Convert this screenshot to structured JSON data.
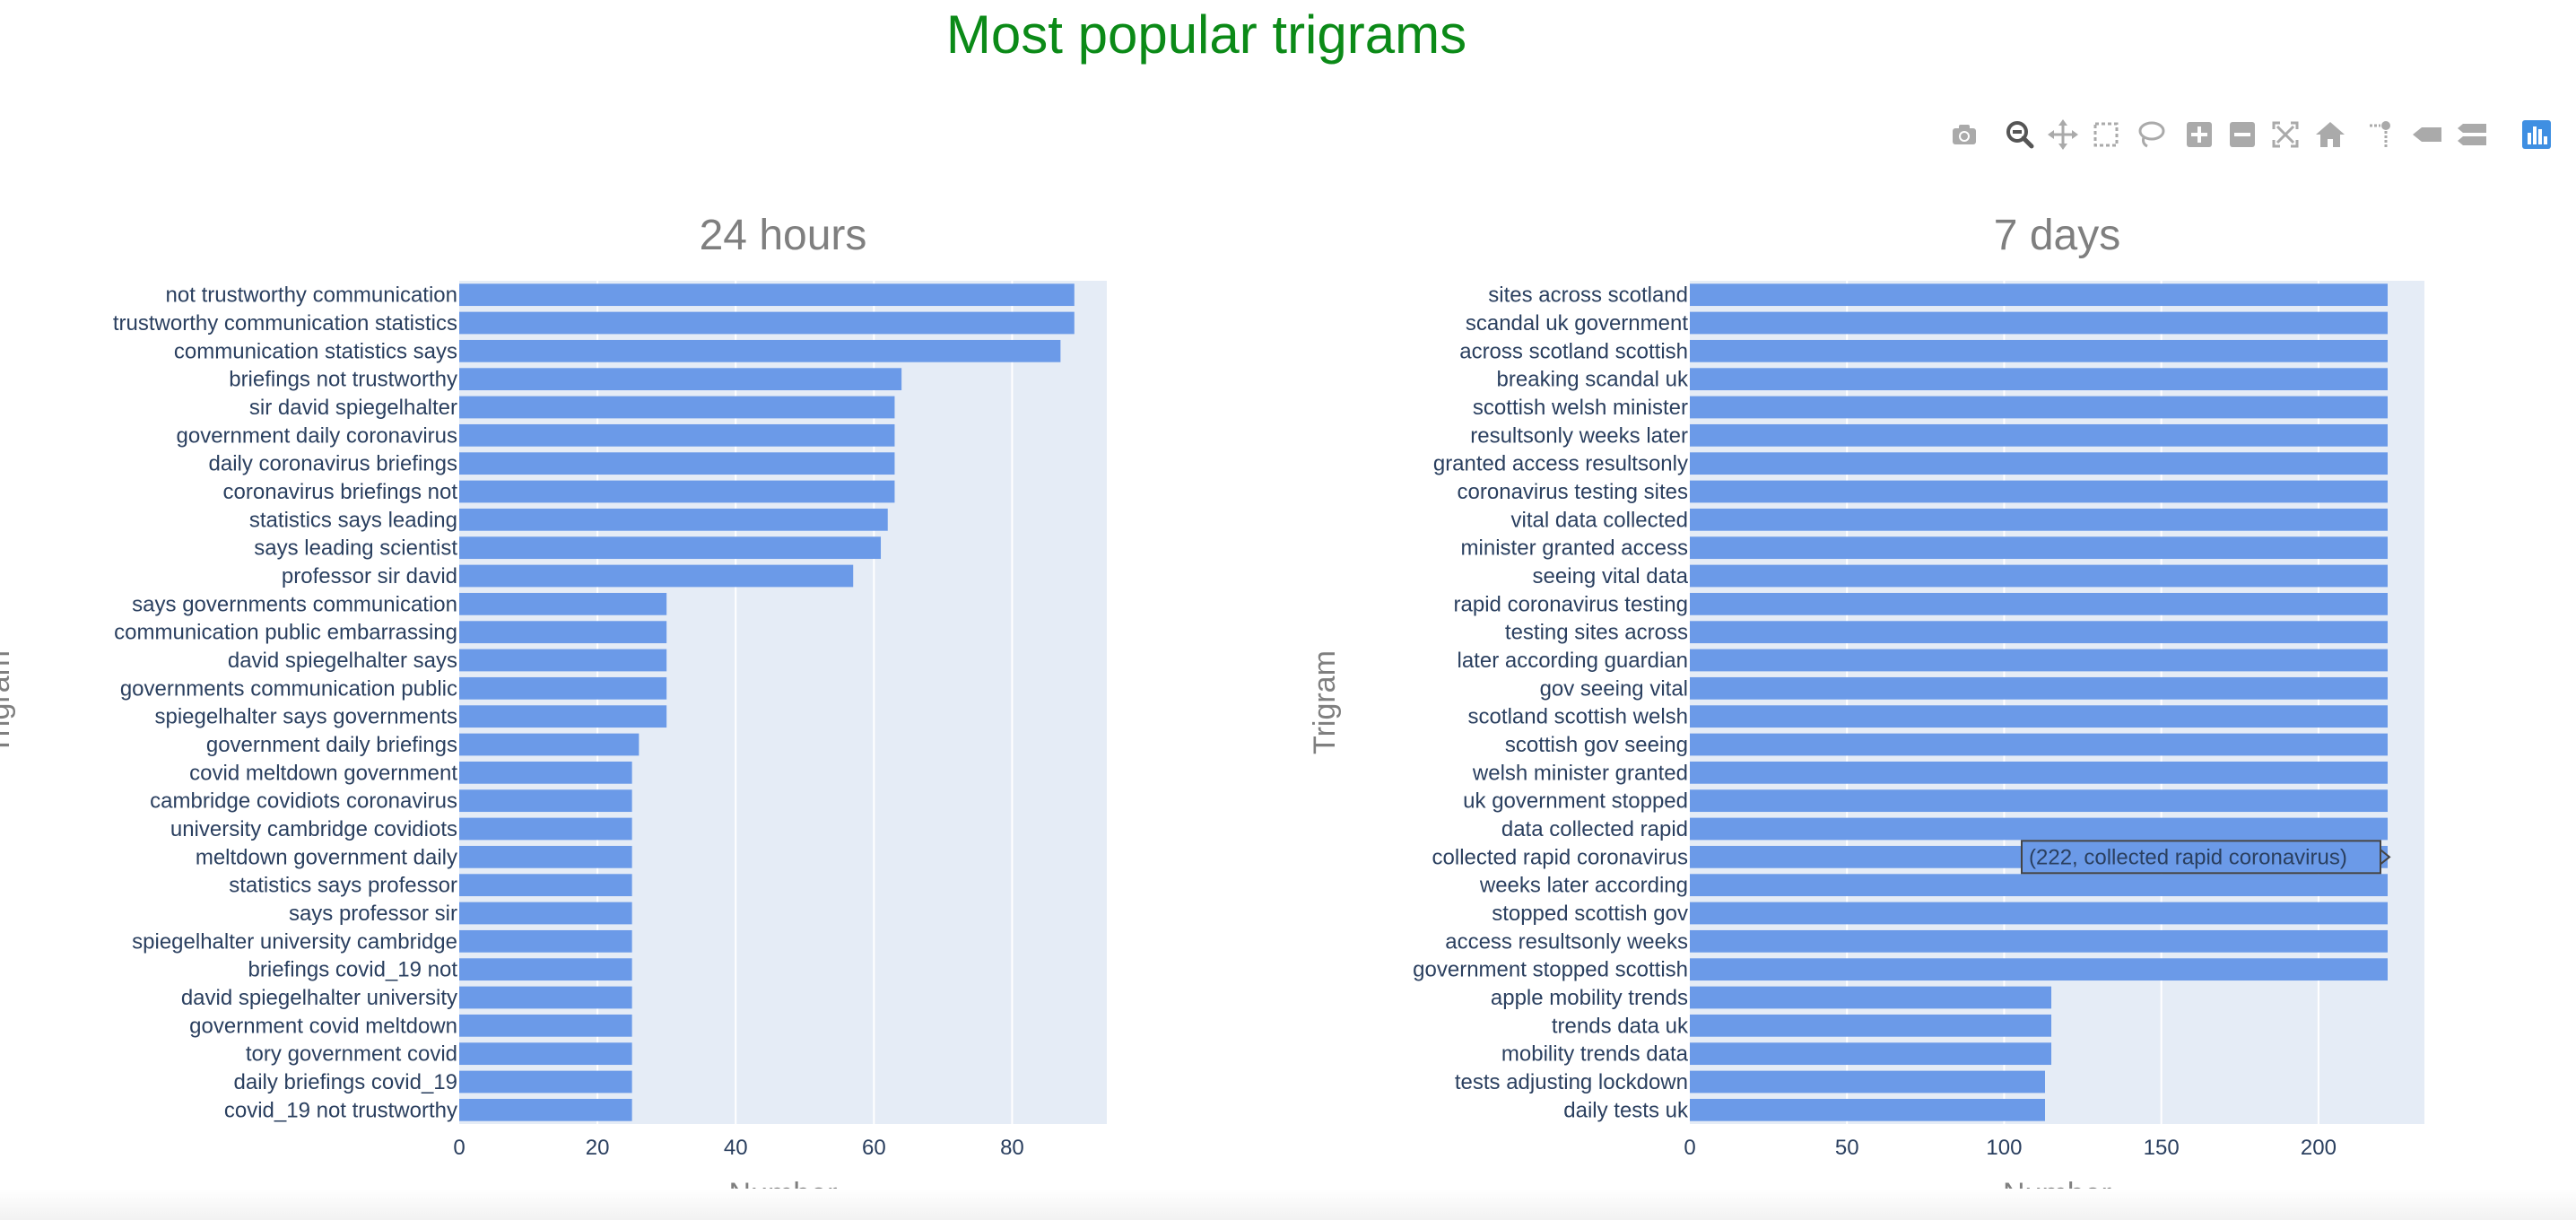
{
  "title": "Most popular trigrams",
  "colors": {
    "title": "#0b8a17",
    "bar": "#6b9ae8",
    "plot_bg": "#e5ecf6",
    "grid": "#ffffff",
    "tick": "#2a3f5f",
    "axis_title": "#7f7f7f",
    "modebar_icon": "#aaaaaa",
    "modebar_active": "#555555",
    "logo": "#3f8fe2"
  },
  "modebar": {
    "buttons": [
      {
        "name": "download-plot-icon",
        "active": false
      },
      {
        "name": "zoom-icon",
        "active": true
      },
      {
        "name": "pan-icon",
        "active": false
      },
      {
        "name": "box-select-icon",
        "active": false
      },
      {
        "name": "lasso-select-icon",
        "active": false
      },
      {
        "name": "zoom-in-icon",
        "active": false
      },
      {
        "name": "zoom-out-icon",
        "active": false
      },
      {
        "name": "autoscale-icon",
        "active": false
      },
      {
        "name": "reset-axes-icon",
        "active": false
      },
      {
        "name": "toggle-spike-lines-icon",
        "active": false
      },
      {
        "name": "hover-closest-icon",
        "active": false
      },
      {
        "name": "hover-compare-icon",
        "active": false
      },
      {
        "name": "plotly-logo-icon",
        "active": false
      }
    ]
  },
  "chart_data": [
    {
      "type": "bar",
      "orientation": "horizontal",
      "title": "24 hours",
      "xlabel": "Number",
      "ylabel": "Trigram",
      "xlim": [
        0,
        93.7
      ],
      "xticks": [
        0,
        20,
        40,
        60,
        80
      ],
      "grid": true,
      "categories": [
        "not trustworthy communication",
        "trustworthy communication statistics",
        "communication statistics says",
        "briefings not trustworthy",
        "sir david spiegelhalter",
        "government daily coronavirus",
        "daily coronavirus briefings",
        "coronavirus briefings not",
        "statistics says leading",
        "says leading scientist",
        "professor sir david",
        "says governments communication",
        "communication public embarrassing",
        "david spiegelhalter says",
        "governments communication public",
        "spiegelhalter says governments",
        "government daily briefings",
        "covid meltdown government",
        "cambridge covidiots coronavirus",
        "university cambridge covidiots",
        "meltdown government daily",
        "statistics says professor",
        "says professor sir",
        "spiegelhalter university cambridge",
        "briefings covid_19 not",
        "david spiegelhalter university",
        "government covid meltdown",
        "tory government covid",
        "daily briefings covid_19",
        "covid_19 not trustworthy"
      ],
      "values": [
        89,
        89,
        87,
        64,
        63,
        63,
        63,
        63,
        62,
        61,
        57,
        30,
        30,
        30,
        30,
        30,
        26,
        25,
        25,
        25,
        25,
        25,
        25,
        25,
        25,
        25,
        25,
        25,
        25,
        25
      ]
    },
    {
      "type": "bar",
      "orientation": "horizontal",
      "title": "7 days",
      "xlabel": "Number",
      "ylabel": "Trigram",
      "xlim": [
        0,
        233.7
      ],
      "xticks": [
        0,
        50,
        100,
        150,
        200
      ],
      "grid": true,
      "categories": [
        "sites across scotland",
        "scandal uk government",
        "across scotland scottish",
        "breaking scandal uk",
        "scottish welsh minister",
        "resultsonly weeks later",
        "granted access resultsonly",
        "coronavirus testing sites",
        "vital data collected",
        "minister granted access",
        "seeing vital data",
        "rapid coronavirus testing",
        "testing sites across",
        "later according guardian",
        "gov seeing vital",
        "scotland scottish welsh",
        "scottish gov seeing",
        "welsh minister granted",
        "uk government stopped",
        "data collected rapid",
        "collected rapid coronavirus",
        "weeks later according",
        "stopped scottish gov",
        "access resultsonly weeks",
        "government stopped scottish",
        "apple mobility trends",
        "trends data uk",
        "mobility trends data",
        "tests adjusting lockdown",
        "daily tests uk"
      ],
      "values": [
        222,
        222,
        222,
        222,
        222,
        222,
        222,
        222,
        222,
        222,
        222,
        222,
        222,
        222,
        222,
        222,
        222,
        222,
        222,
        222,
        222,
        222,
        222,
        222,
        222,
        115,
        115,
        115,
        113,
        113
      ],
      "hover_label": "(222, collected rapid coronavirus)"
    }
  ]
}
